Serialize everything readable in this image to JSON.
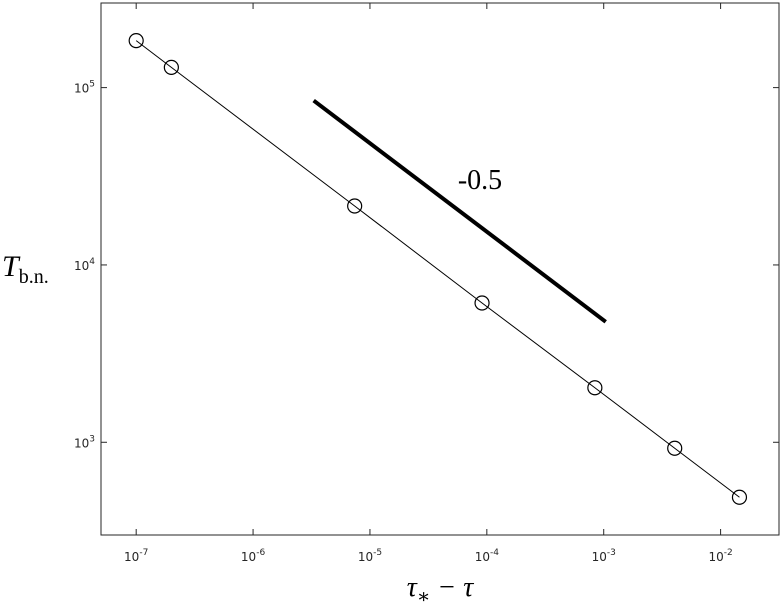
{
  "chart_data": {
    "type": "line",
    "xlabel": {
      "main": "τ",
      "sub": "∗",
      "rest": " − τ"
    },
    "ylabel": {
      "main": "T",
      "sub": "b.n."
    },
    "annotation": "-0.5",
    "x": [
      1e-07,
      2e-07,
      7.4e-06,
      9.1e-05,
      0.00084,
      0.00405,
      0.0145
    ],
    "series": [
      {
        "color": "#000000",
        "marker": "circle",
        "values": [
          184000,
          130000,
          21500,
          6100,
          2030,
          925,
          490
        ]
      }
    ],
    "slope_line": {
      "color": "#000000",
      "x": [
        3.3e-06,
        0.00104
      ],
      "values": [
        84500,
        4780
      ]
    },
    "xscale": "log",
    "yscale": "log",
    "xlim": [
      5e-08,
      0.0316
    ],
    "ylim": [
      300,
      300000
    ],
    "xticks": [
      {
        "value": 1e-07,
        "label": {
          "base": "10",
          "exp": "-7"
        }
      },
      {
        "value": 1e-06,
        "label": {
          "base": "10",
          "exp": "-6"
        }
      },
      {
        "value": 1e-05,
        "label": {
          "base": "10",
          "exp": "-5"
        }
      },
      {
        "value": 0.0001,
        "label": {
          "base": "10",
          "exp": "-4"
        }
      },
      {
        "value": 0.001,
        "label": {
          "base": "10",
          "exp": "-3"
        }
      },
      {
        "value": 0.01,
        "label": {
          "base": "10",
          "exp": "-2"
        }
      }
    ],
    "yticks": [
      {
        "value": 1000,
        "label": {
          "base": "10",
          "exp": "3"
        }
      },
      {
        "value": 10000,
        "label": {
          "base": "10",
          "exp": "4"
        }
      },
      {
        "value": 100000,
        "label": {
          "base": "10",
          "exp": "5"
        }
      }
    ],
    "grid": false
  }
}
